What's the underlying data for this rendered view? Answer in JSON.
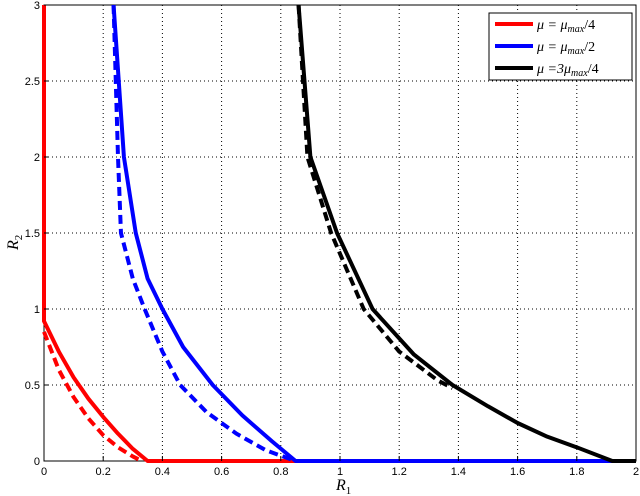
{
  "chart_data": {
    "type": "line",
    "title": "",
    "xlabel": "R1",
    "ylabel": "R2",
    "xlim": [
      0,
      2
    ],
    "ylim": [
      0,
      3
    ],
    "grid": true,
    "legend_position": "upper right",
    "x_ticks": [
      "0",
      "0.2",
      "0.4",
      "0.6",
      "0.8",
      "1",
      "1.2",
      "1.4",
      "1.6",
      "1.8",
      "2"
    ],
    "y_ticks": [
      "0",
      "0.5",
      "1",
      "1.5",
      "2",
      "2.5",
      "3"
    ],
    "legend": [
      {
        "label": "μ = μmax/4",
        "color": "#ff0000"
      },
      {
        "label": "μ = μmax/2",
        "color": "#0000ff"
      },
      {
        "label": "μ =3μmax/4",
        "color": "#000000"
      }
    ],
    "series": [
      {
        "name": "μ = μmax/4 (solid)",
        "color": "#ff0000",
        "style": "solid",
        "x": [
          0,
          0,
          0.05,
          0.1,
          0.15,
          0.2,
          0.25,
          0.3,
          0.35,
          0.85
        ],
        "y": [
          3,
          0.92,
          0.72,
          0.55,
          0.41,
          0.29,
          0.18,
          0.08,
          0,
          0
        ]
      },
      {
        "name": "μ = μmax/4 (dashed)",
        "color": "#ff0000",
        "style": "dashed",
        "x": [
          0,
          0.05,
          0.1,
          0.15,
          0.2,
          0.25,
          0.3,
          0.33
        ],
        "y": [
          0.85,
          0.6,
          0.42,
          0.28,
          0.17,
          0.09,
          0.03,
          0
        ]
      },
      {
        "name": "μ = μmax/2 (solid)",
        "color": "#0000ff",
        "style": "solid",
        "x": [
          0.235,
          0.27,
          0.31,
          0.35,
          0.4,
          0.47,
          0.57,
          0.67,
          0.77,
          0.85,
          1.92
        ],
        "y": [
          3,
          2.0,
          1.5,
          1.2,
          1.0,
          0.75,
          0.5,
          0.3,
          0.13,
          0,
          0
        ]
      },
      {
        "name": "μ = μmax/2 (dashed)",
        "color": "#0000ff",
        "style": "dashed",
        "x": [
          0.235,
          0.25,
          0.26,
          0.3,
          0.34,
          0.4,
          0.46,
          0.55,
          0.65,
          0.75,
          0.85
        ],
        "y": [
          3,
          2.0,
          1.5,
          1.2,
          1.0,
          0.72,
          0.5,
          0.32,
          0.18,
          0.07,
          0
        ]
      },
      {
        "name": "μ =3μmax/4 (solid)",
        "color": "#000000",
        "style": "solid",
        "x": [
          0.86,
          0.9,
          0.99,
          1.11,
          1.25,
          1.38,
          1.5,
          1.6,
          1.7,
          1.8,
          1.92,
          2.0
        ],
        "y": [
          3,
          2.0,
          1.5,
          1.0,
          0.7,
          0.5,
          0.36,
          0.25,
          0.16,
          0.09,
          0,
          0
        ]
      },
      {
        "name": "μ =3μmax/4 (dashed)",
        "color": "#000000",
        "style": "dashed",
        "x": [
          0.86,
          0.89,
          0.97,
          1.08,
          1.2,
          1.33,
          1.38
        ],
        "y": [
          3,
          2.0,
          1.5,
          1.0,
          0.72,
          0.53,
          0.48
        ]
      }
    ]
  },
  "axes": {
    "xlabel_main": "R",
    "xlabel_sub": "1",
    "ylabel_main": "R",
    "ylabel_sub": "2"
  },
  "legend": {
    "items": [
      {
        "lhs": "μ = ",
        "rhs": "μ",
        "sub": "max",
        "tail": "/4"
      },
      {
        "lhs": "μ = ",
        "rhs": "μ",
        "sub": "max",
        "tail": "/2"
      },
      {
        "lhs": "μ =3",
        "rhs": "μ",
        "sub": "max",
        "tail": "/4"
      }
    ]
  }
}
